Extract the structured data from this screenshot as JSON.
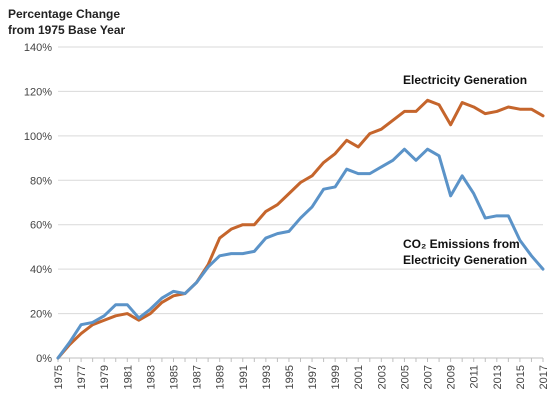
{
  "chart_data": {
    "type": "line",
    "title": "",
    "ylabel_lines": [
      "Percentage Change",
      "from 1975 Base Year"
    ],
    "xlabel": "",
    "ylim": [
      0,
      140
    ],
    "y_ticks": [
      0,
      20,
      40,
      60,
      80,
      100,
      120,
      140
    ],
    "y_tick_labels": [
      "0%",
      "20%",
      "40%",
      "60%",
      "80%",
      "100%",
      "120%",
      "140%"
    ],
    "x_ticks": [
      1975,
      1977,
      1979,
      1981,
      1983,
      1985,
      1987,
      1989,
      1991,
      1993,
      1995,
      1997,
      1999,
      2001,
      2003,
      2005,
      2007,
      2009,
      2011,
      2013,
      2015,
      2017
    ],
    "x_tick_labels": [
      "1975",
      "1977",
      "1979",
      "1981",
      "1983",
      "1985",
      "1987",
      "1989",
      "1991",
      "1993",
      "1995",
      "1997",
      "1999",
      "2001",
      "2003",
      "2005",
      "2007",
      "2009",
      "2011",
      "2013",
      "2015",
      "2017"
    ],
    "grid": true,
    "legend": "none",
    "x": [
      1975,
      1976,
      1977,
      1978,
      1979,
      1980,
      1981,
      1982,
      1983,
      1984,
      1985,
      1986,
      1987,
      1988,
      1989,
      1990,
      1991,
      1992,
      1993,
      1994,
      1995,
      1996,
      1997,
      1998,
      1999,
      2000,
      2001,
      2002,
      2003,
      2004,
      2005,
      2006,
      2007,
      2008,
      2009,
      2010,
      2011,
      2012,
      2013,
      2014,
      2015,
      2016,
      2017
    ],
    "series": [
      {
        "key": "electricity",
        "label_lines": [
          "Electricity Generation"
        ],
        "color": "#c5652c",
        "values": [
          0,
          6,
          11,
          15,
          17,
          19,
          20,
          17,
          20,
          25,
          28,
          29,
          34,
          42,
          54,
          58,
          60,
          60,
          66,
          69,
          74,
          79,
          82,
          88,
          92,
          98,
          95,
          101,
          103,
          107,
          111,
          111,
          116,
          114,
          105,
          115,
          113,
          110,
          111,
          113,
          112,
          112,
          109
        ]
      },
      {
        "key": "co2",
        "label_lines": [
          "CO₂ Emissions from",
          "Electricity Generation"
        ],
        "color": "#5b93c8",
        "values": [
          0,
          7,
          15,
          16,
          19,
          24,
          24,
          18,
          22,
          27,
          30,
          29,
          34,
          41,
          46,
          47,
          47,
          48,
          54,
          56,
          57,
          63,
          68,
          76,
          77,
          85,
          83,
          83,
          86,
          89,
          94,
          89,
          94,
          91,
          73,
          82,
          74,
          63,
          64,
          64,
          53,
          46,
          40
        ]
      }
    ]
  }
}
